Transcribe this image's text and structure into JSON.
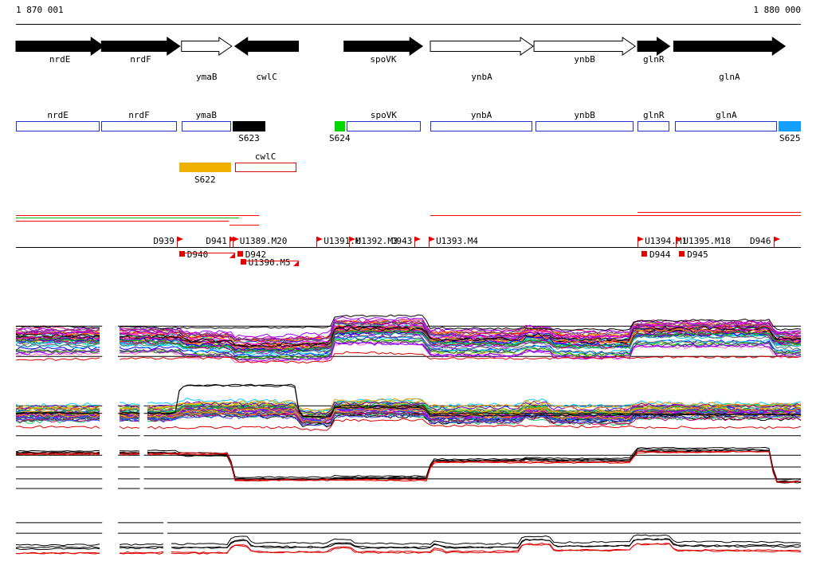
{
  "ruler": {
    "start_label": "1 870 001",
    "end_label": "1 880 000",
    "start": 1870001,
    "end": 1880000
  },
  "colors": {
    "outline_blue": "#2233cc",
    "fill_black": "#000000",
    "fill_green": "#00d800",
    "fill_blue": "#15a0ff",
    "fill_orange": "#f0b000",
    "outline_red": "#d01010",
    "signal_red": "#ff0000",
    "signal_green": "#00b800",
    "marker_red": "#e60000"
  },
  "gene_track": {
    "genes": [
      {
        "name": "nrdE",
        "start": 1870001,
        "end": 1871120,
        "strand": "+",
        "filled": true,
        "label_row": 0
      },
      {
        "name": "nrdF",
        "start": 1871090,
        "end": 1872090,
        "strand": "+",
        "filled": true,
        "label_row": 0
      },
      {
        "name": "ymaB",
        "start": 1872110,
        "end": 1872750,
        "strand": "+",
        "filled": false,
        "label_row": 1
      },
      {
        "name": "cwlC",
        "start": 1872790,
        "end": 1873600,
        "strand": "-",
        "filled": true,
        "label_row": 1
      },
      {
        "name": "spoVK",
        "start": 1874180,
        "end": 1875180,
        "strand": "+",
        "filled": true,
        "label_row": 0
      },
      {
        "name": "ynbA",
        "start": 1875280,
        "end": 1876590,
        "strand": "+",
        "filled": false,
        "label_row": 1
      },
      {
        "name": "ynbB",
        "start": 1876600,
        "end": 1877890,
        "strand": "+",
        "filled": false,
        "label_row": 0
      },
      {
        "name": "glnR",
        "start": 1877920,
        "end": 1878330,
        "strand": "+",
        "filled": true,
        "label_row": 0
      },
      {
        "name": "glnA",
        "start": 1878380,
        "end": 1879800,
        "strand": "+",
        "filled": true,
        "label_row": 1
      }
    ]
  },
  "feature_track": {
    "rows": [
      [
        {
          "label": "nrdE",
          "start": 1870001,
          "end": 1871070,
          "style": "outline_blue",
          "label_pos": "above"
        },
        {
          "label": "nrdF",
          "start": 1871090,
          "end": 1872050,
          "style": "outline_blue",
          "label_pos": "above"
        },
        {
          "label": "ymaB",
          "start": 1872110,
          "end": 1872740,
          "style": "outline_blue",
          "label_pos": "above"
        },
        {
          "label": "S623",
          "start": 1872760,
          "end": 1873180,
          "style": "fill_black",
          "label_pos": "below"
        },
        {
          "label": "S624",
          "start": 1874060,
          "end": 1874190,
          "style": "fill_green",
          "label_pos": "below"
        },
        {
          "label": "spoVK",
          "start": 1874210,
          "end": 1875160,
          "style": "outline_blue",
          "label_pos": "above"
        },
        {
          "label": "ynbA",
          "start": 1875280,
          "end": 1876580,
          "style": "outline_blue",
          "label_pos": "above"
        },
        {
          "label": "ynbB",
          "start": 1876620,
          "end": 1877870,
          "style": "outline_blue",
          "label_pos": "above"
        },
        {
          "label": "glnR",
          "start": 1877920,
          "end": 1878330,
          "style": "outline_blue",
          "label_pos": "above"
        },
        {
          "label": "glnA",
          "start": 1878400,
          "end": 1879700,
          "style": "outline_blue",
          "label_pos": "above"
        },
        {
          "label": "S625",
          "start": 1879720,
          "end": 1880000,
          "style": "fill_blue",
          "label_pos": "below"
        }
      ],
      [
        {
          "label": "S622",
          "start": 1872080,
          "end": 1872740,
          "style": "fill_orange",
          "label_pos": "below"
        },
        {
          "label": "cwlC",
          "start": 1872790,
          "end": 1873570,
          "style": "outline_red",
          "label_pos": "above"
        }
      ]
    ]
  },
  "signal_track": {
    "segments": [
      {
        "color": "red",
        "start": 1870001,
        "end": 1873100,
        "lane": 1
      },
      {
        "color": "green",
        "start": 1870001,
        "end": 1872840,
        "lane": 2
      },
      {
        "color": "red",
        "start": 1870001,
        "end": 1872710,
        "lane": 3
      },
      {
        "color": "red",
        "start": 1872720,
        "end": 1873100,
        "lane": 4
      },
      {
        "color": "red",
        "start": 1875280,
        "end": 1880000,
        "lane": 1
      },
      {
        "color": "red",
        "start": 1877920,
        "end": 1880000,
        "lane": 0
      }
    ]
  },
  "marker_track": {
    "markers": [
      {
        "id": "D939",
        "coord": 1872050,
        "side": "above",
        "label_side": "left"
      },
      {
        "id": "D940",
        "coord": 1872080,
        "side": "below",
        "label_side": "right",
        "bar_to": 1872790
      },
      {
        "id": "D941",
        "coord": 1872720,
        "side": "above",
        "label_side": "left"
      },
      {
        "id": "U1389.M20",
        "coord": 1872760,
        "side": "above",
        "label_side": "right"
      },
      {
        "id": "D942",
        "coord": 1872820,
        "side": "below",
        "label_side": "right"
      },
      {
        "id": "U1390.M5",
        "coord": 1872860,
        "side": "below2",
        "label_side": "right",
        "bar_to": 1873600
      },
      {
        "id": "U1391.M",
        "coord": 1873830,
        "side": "above",
        "label_side": "right"
      },
      {
        "id": "U1392.M3",
        "coord": 1874240,
        "side": "above",
        "label_side": "right"
      },
      {
        "id": "D943",
        "coord": 1875080,
        "side": "above",
        "label_side": "left"
      },
      {
        "id": "U1393.M4",
        "coord": 1875260,
        "side": "above",
        "label_side": "right"
      },
      {
        "id": "U1394.M1",
        "coord": 1877920,
        "side": "above",
        "label_side": "right"
      },
      {
        "id": "D944",
        "coord": 1877970,
        "side": "below",
        "label_side": "right"
      },
      {
        "id": "U1395.M18",
        "coord": 1878410,
        "side": "above",
        "label_side": "right"
      },
      {
        "id": "D945",
        "coord": 1878450,
        "side": "below",
        "label_side": "right"
      },
      {
        "id": "D946",
        "coord": 1879650,
        "side": "above",
        "label_side": "left"
      }
    ]
  },
  "seed": 20,
  "palette": [
    "#ff00ff",
    "#cc00cc",
    "#9900ff",
    "#6600cc",
    "#0000ff",
    "#0066ff",
    "#00ccff",
    "#00cccc",
    "#00cc66",
    "#00aa00",
    "#66cc00",
    "#99cc00",
    "#cccc00",
    "#ff9900",
    "#ff6600",
    "#ff0000",
    "#cc0066",
    "#ff66cc",
    "#666666",
    "#000000",
    "#884400",
    "#008888",
    "#4444ff",
    "#aa00aa"
  ],
  "chart_data": [
    {
      "type": "line",
      "x_range": [
        1870001,
        1880000
      ],
      "ref_lines": [
        0.72,
        0.22
      ],
      "gaps": [
        [
          1871100,
          1871300
        ]
      ],
      "groups": [
        {
          "n": 42,
          "spread": 0.42,
          "noise": 0.03,
          "profile": [
            [
              1870001,
              0.52
            ],
            [
              1872090,
              0.52
            ],
            [
              1872150,
              0.45
            ],
            [
              1872720,
              0.45
            ],
            [
              1872780,
              0.38
            ],
            [
              1873570,
              0.38
            ],
            [
              1873630,
              0.4
            ],
            [
              1874000,
              0.4
            ],
            [
              1874060,
              0.66
            ],
            [
              1875200,
              0.66
            ],
            [
              1875260,
              0.48
            ],
            [
              1876420,
              0.48
            ],
            [
              1876480,
              0.54
            ],
            [
              1876800,
              0.54
            ],
            [
              1876860,
              0.46
            ],
            [
              1877820,
              0.46
            ],
            [
              1877880,
              0.64
            ],
            [
              1879600,
              0.64
            ],
            [
              1879670,
              0.48
            ],
            [
              1880000,
              0.48
            ]
          ]
        },
        {
          "n": 1,
          "color": "#000000",
          "spread": 0,
          "noise": 0.018,
          "profile": [
            [
              1870001,
              0.7
            ],
            [
              1874000,
              0.7
            ],
            [
              1874060,
              0.88
            ],
            [
              1875200,
              0.88
            ],
            [
              1875260,
              0.68
            ],
            [
              1877820,
              0.68
            ],
            [
              1877880,
              0.82
            ],
            [
              1879600,
              0.82
            ],
            [
              1879670,
              0.65
            ],
            [
              1880000,
              0.65
            ]
          ]
        },
        {
          "n": 1,
          "color": "#e00000",
          "spread": 0,
          "noise": 0.02,
          "profile": [
            [
              1870001,
              0.18
            ],
            [
              1872780,
              0.18
            ],
            [
              1872840,
              0.12
            ],
            [
              1874000,
              0.12
            ],
            [
              1874060,
              0.28
            ],
            [
              1875200,
              0.28
            ],
            [
              1875260,
              0.2
            ],
            [
              1880000,
              0.2
            ]
          ]
        }
      ]
    },
    {
      "type": "line",
      "x_range": [
        1870001,
        1880000
      ],
      "ref_lines": [
        0.61,
        0.49,
        0.14
      ],
      "gaps": [
        [
          1871100,
          1871300
        ],
        [
          1871580,
          1871630
        ]
      ],
      "groups": [
        {
          "n": 38,
          "spread": 0.3,
          "noise": 0.03,
          "profile": [
            [
              1870001,
              0.48
            ],
            [
              1872050,
              0.48
            ],
            [
              1872110,
              0.54
            ],
            [
              1873570,
              0.54
            ],
            [
              1873630,
              0.42
            ],
            [
              1874000,
              0.42
            ],
            [
              1874060,
              0.56
            ],
            [
              1875200,
              0.56
            ],
            [
              1875260,
              0.46
            ],
            [
              1876420,
              0.46
            ],
            [
              1876480,
              0.53
            ],
            [
              1876760,
              0.53
            ],
            [
              1876820,
              0.45
            ],
            [
              1877820,
              0.45
            ],
            [
              1877880,
              0.52
            ],
            [
              1880000,
              0.52
            ]
          ]
        },
        {
          "n": 2,
          "color": "#000000",
          "spread": 0.04,
          "noise": 0.012,
          "profile": [
            [
              1870001,
              0.5
            ],
            [
              1872030,
              0.5
            ],
            [
              1872090,
              0.9
            ],
            [
              1872230,
              0.94
            ],
            [
              1873550,
              0.94
            ],
            [
              1873620,
              0.45
            ],
            [
              1874000,
              0.45
            ],
            [
              1874060,
              0.6
            ],
            [
              1875200,
              0.6
            ],
            [
              1875260,
              0.48
            ],
            [
              1880000,
              0.48
            ]
          ]
        },
        {
          "n": 1,
          "color": "#e00000",
          "spread": 0,
          "noise": 0.02,
          "profile": [
            [
              1870001,
              0.28
            ],
            [
              1873570,
              0.28
            ],
            [
              1873630,
              0.24
            ],
            [
              1874000,
              0.24
            ],
            [
              1874060,
              0.38
            ],
            [
              1875200,
              0.38
            ],
            [
              1875260,
              0.28
            ],
            [
              1880000,
              0.28
            ]
          ]
        }
      ]
    },
    {
      "type": "line",
      "x_range": [
        1870001,
        1880000
      ],
      "ref_lines": [
        0.82,
        0.58,
        0.34,
        0.145
      ],
      "gaps": [
        [
          1871100,
          1871300
        ],
        [
          1871580,
          1871630
        ]
      ],
      "groups": [
        {
          "n": 4,
          "color": "#000000",
          "spread": 0.08,
          "noise": 0.012,
          "profile": [
            [
              1870001,
              0.88
            ],
            [
              1872050,
              0.88
            ],
            [
              1872090,
              0.83
            ],
            [
              1872720,
              0.83
            ],
            [
              1872780,
              0.34
            ],
            [
              1874000,
              0.34
            ],
            [
              1874060,
              0.37
            ],
            [
              1875240,
              0.37
            ],
            [
              1875300,
              0.72
            ],
            [
              1876440,
              0.72
            ],
            [
              1876500,
              0.76
            ],
            [
              1876900,
              0.73
            ],
            [
              1877840,
              0.73
            ],
            [
              1877900,
              0.93
            ],
            [
              1879600,
              0.93
            ],
            [
              1879670,
              0.3
            ],
            [
              1880000,
              0.3
            ]
          ]
        },
        {
          "n": 2,
          "color": "#e00000",
          "spread": 0.04,
          "noise": 0.012,
          "profile": [
            [
              1870001,
              0.84
            ],
            [
              1872720,
              0.84
            ],
            [
              1872780,
              0.3
            ],
            [
              1875240,
              0.3
            ],
            [
              1875300,
              0.67
            ],
            [
              1877840,
              0.67
            ],
            [
              1877900,
              0.88
            ],
            [
              1879600,
              0.88
            ],
            [
              1879670,
              0.27
            ],
            [
              1880000,
              0.27
            ]
          ]
        }
      ]
    },
    {
      "type": "line",
      "x_range": [
        1870001,
        1880000
      ],
      "ref_lines": [
        0.85,
        0.65
      ],
      "gaps": [
        [
          1871100,
          1871300
        ],
        [
          1871880,
          1871930
        ]
      ],
      "groups": [
        {
          "n": 3,
          "color": "#000000",
          "spread": 0.1,
          "noise": 0.015,
          "profile": [
            [
              1870001,
              0.4
            ],
            [
              1872700,
              0.4
            ],
            [
              1872760,
              0.54
            ],
            [
              1872940,
              0.54
            ],
            [
              1873010,
              0.42
            ],
            [
              1873980,
              0.42
            ],
            [
              1874040,
              0.5
            ],
            [
              1874260,
              0.5
            ],
            [
              1874330,
              0.42
            ],
            [
              1875280,
              0.42
            ],
            [
              1875340,
              0.5
            ],
            [
              1875480,
              0.42
            ],
            [
              1876400,
              0.42
            ],
            [
              1876460,
              0.56
            ],
            [
              1876800,
              0.56
            ],
            [
              1876860,
              0.44
            ],
            [
              1877820,
              0.44
            ],
            [
              1877880,
              0.56
            ],
            [
              1878330,
              0.56
            ],
            [
              1878390,
              0.44
            ],
            [
              1880000,
              0.44
            ]
          ]
        },
        {
          "n": 2,
          "color": "#e00000",
          "spread": 0.05,
          "noise": 0.015,
          "profile": [
            [
              1870001,
              0.28
            ],
            [
              1872700,
              0.28
            ],
            [
              1872760,
              0.42
            ],
            [
              1872940,
              0.42
            ],
            [
              1873010,
              0.3
            ],
            [
              1873980,
              0.3
            ],
            [
              1874040,
              0.38
            ],
            [
              1874260,
              0.38
            ],
            [
              1874330,
              0.3
            ],
            [
              1875280,
              0.3
            ],
            [
              1875340,
              0.38
            ],
            [
              1875480,
              0.3
            ],
            [
              1876400,
              0.3
            ],
            [
              1876460,
              0.44
            ],
            [
              1876800,
              0.44
            ],
            [
              1876860,
              0.32
            ],
            [
              1877820,
              0.32
            ],
            [
              1877880,
              0.44
            ],
            [
              1878330,
              0.44
            ],
            [
              1878390,
              0.32
            ],
            [
              1880000,
              0.32
            ]
          ]
        }
      ]
    }
  ]
}
